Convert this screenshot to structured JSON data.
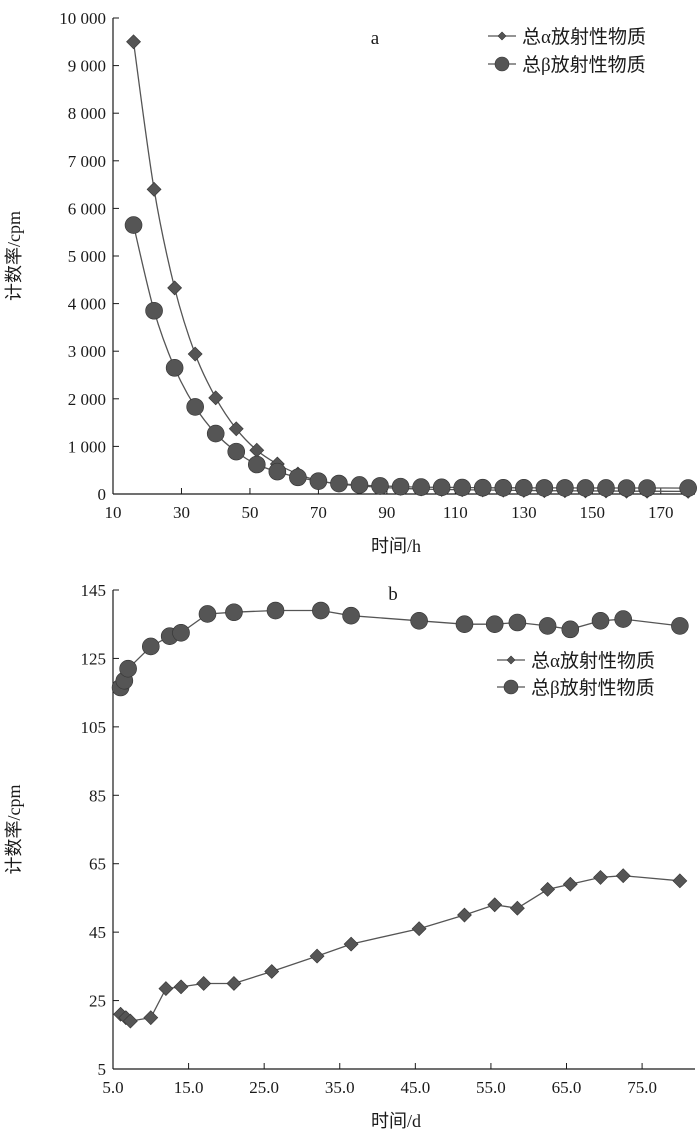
{
  "colors": {
    "series": "#555555",
    "axis": "#1a1a1a",
    "background": "#ffffff"
  },
  "chart_data": [
    {
      "type": "line",
      "panel_label": "a",
      "xlabel": "时间/h",
      "ylabel": "计数率/cpm",
      "xlim": [
        10,
        180
      ],
      "ylim": [
        0,
        10000
      ],
      "x_ticks": [
        10,
        30,
        50,
        70,
        90,
        110,
        130,
        150,
        170
      ],
      "x_tick_labels": [
        "10",
        "30",
        "50",
        "70",
        "90",
        "110",
        "130",
        "150",
        "170"
      ],
      "y_ticks": [
        0,
        1000,
        2000,
        3000,
        4000,
        5000,
        6000,
        7000,
        8000,
        9000,
        10000
      ],
      "y_tick_labels": [
        "0",
        "1 000",
        "2 000",
        "3 000",
        "4 000",
        "5 000",
        "6 000",
        "7 000",
        "8 000",
        "9 000",
        "10 000"
      ],
      "grid": false,
      "legend_position": "top-right",
      "series": [
        {
          "name": "总α放射性物质",
          "marker": "diamond",
          "x": [
            16,
            22,
            28,
            34,
            40,
            46,
            52,
            58,
            64,
            70,
            76,
            82,
            88,
            94,
            100,
            106,
            112,
            118,
            124,
            130,
            136,
            142,
            148,
            154,
            160,
            166,
            178
          ],
          "y": [
            9500,
            6400,
            4330,
            2940,
            2020,
            1370,
            920,
            630,
            420,
            280,
            210,
            170,
            140,
            120,
            105,
            95,
            90,
            85,
            80,
            75,
            70,
            68,
            65,
            63,
            60,
            58,
            55
          ]
        },
        {
          "name": "总β放射性物质",
          "marker": "circle",
          "x": [
            16,
            22,
            28,
            34,
            40,
            46,
            52,
            58,
            64,
            70,
            76,
            82,
            88,
            94,
            100,
            106,
            112,
            118,
            124,
            130,
            136,
            142,
            148,
            154,
            160,
            166,
            178
          ],
          "y": [
            5650,
            3850,
            2650,
            1830,
            1270,
            890,
            620,
            470,
            350,
            270,
            220,
            190,
            170,
            155,
            145,
            140,
            135,
            132,
            130,
            130,
            128,
            128,
            127,
            127,
            126,
            126,
            125
          ]
        }
      ]
    },
    {
      "type": "line",
      "panel_label": "b",
      "xlabel": "时间/d",
      "ylabel": "计数率/cpm",
      "xlim": [
        5,
        82
      ],
      "ylim": [
        5,
        145
      ],
      "x_ticks": [
        5,
        15,
        25,
        35,
        45,
        55,
        65,
        75
      ],
      "x_tick_labels": [
        "5.0",
        "15.0",
        "25.0",
        "35.0",
        "45.0",
        "55.0",
        "65.0",
        "75.0"
      ],
      "y_ticks": [
        5,
        25,
        45,
        65,
        85,
        105,
        125,
        145
      ],
      "y_tick_labels": [
        "5",
        "25",
        "45",
        "65",
        "85",
        "105",
        "125",
        "145"
      ],
      "grid": false,
      "legend_position": "upper-right",
      "series": [
        {
          "name": "总α放射性物质",
          "marker": "diamond",
          "x": [
            6,
            6.7,
            7.3,
            10,
            12,
            14,
            17,
            21,
            26,
            32,
            36.5,
            45.5,
            51.5,
            55.5,
            58.5,
            62.5,
            65.5,
            69.5,
            72.5,
            80
          ],
          "y": [
            21,
            20,
            19,
            20,
            28.5,
            29,
            30,
            30,
            33.5,
            38,
            41.5,
            46,
            50,
            53,
            52,
            57.5,
            59,
            61,
            61.5,
            60
          ]
        },
        {
          "name": "总β放射性物质",
          "marker": "circle",
          "x": [
            6,
            6.5,
            7,
            10,
            12.5,
            14,
            17.5,
            21,
            26.5,
            32.5,
            36.5,
            45.5,
            51.5,
            55.5,
            58.5,
            62.5,
            65.5,
            69.5,
            72.5,
            80
          ],
          "y": [
            116.5,
            118.5,
            122,
            128.5,
            131.5,
            132.5,
            138,
            138.5,
            139,
            139,
            137.5,
            136,
            135,
            135,
            135.5,
            134.5,
            133.5,
            136,
            136.5,
            134.5
          ]
        }
      ]
    }
  ]
}
